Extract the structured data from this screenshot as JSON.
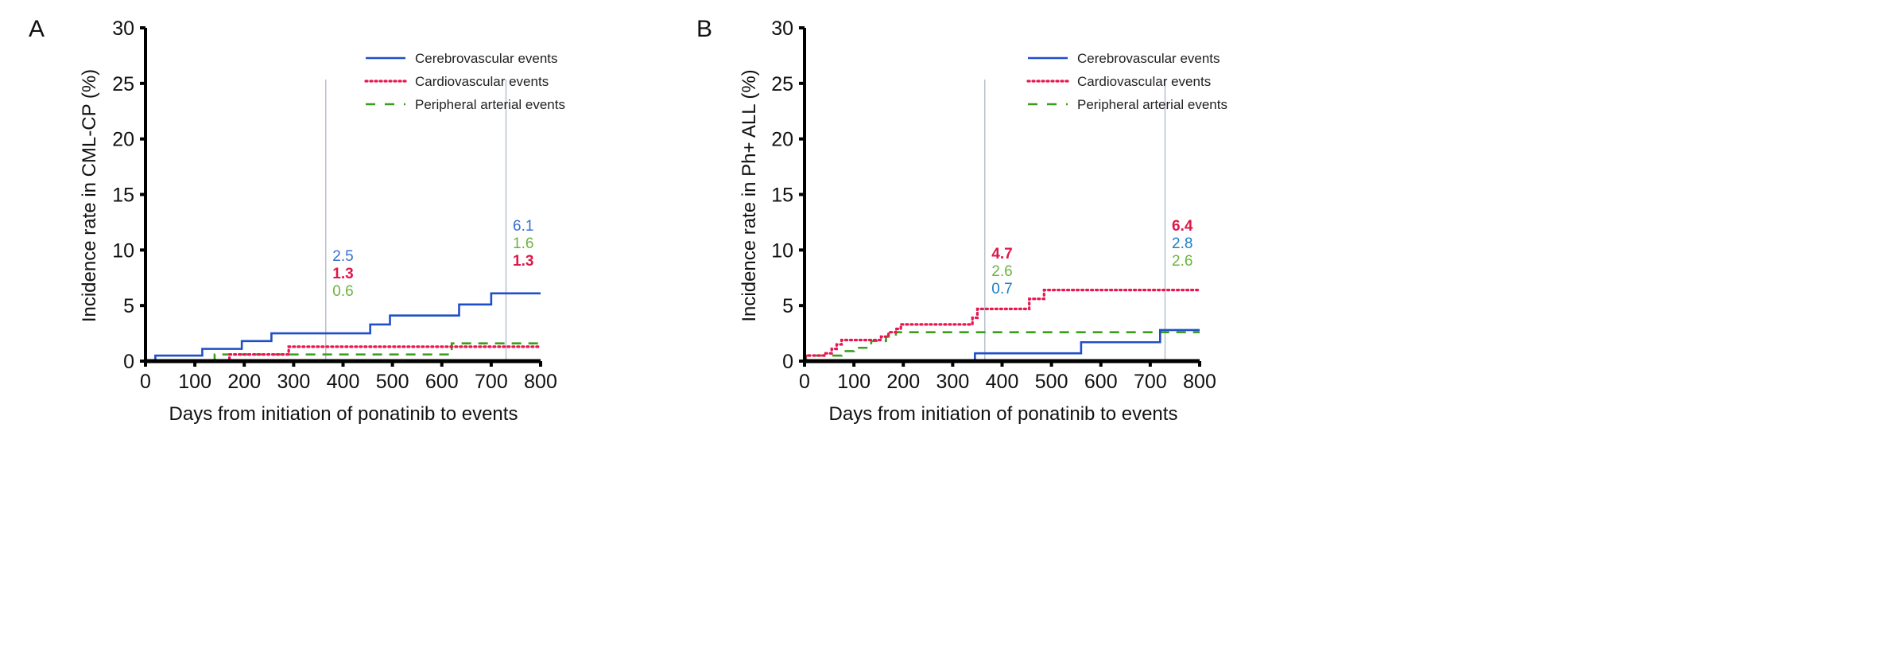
{
  "chart_data": [
    {
      "type": "line",
      "step": true,
      "panel_label": "A",
      "title": "",
      "xlabel": "Days from initiation of ponatinib to events",
      "ylabel": "Incidence rate in CML-CP (%)",
      "xlim": [
        0,
        800
      ],
      "ylim": [
        0,
        30
      ],
      "xticks": [
        "0",
        "100",
        "200",
        "300",
        "400",
        "500",
        "600",
        "700",
        "800"
      ],
      "yticks": [
        "0",
        "5",
        "10",
        "15",
        "20",
        "25",
        "30"
      ],
      "reference_lines_x": [
        365,
        730
      ],
      "legend_position": "top-right",
      "series": [
        {
          "name": "Cerebrovascular events",
          "style": "solid",
          "color": "#1f4fc8",
          "x": [
            0,
            20,
            115,
            195,
            255,
            455,
            495,
            635,
            700,
            800
          ],
          "y": [
            0,
            0.5,
            1.1,
            1.8,
            2.5,
            3.3,
            4.1,
            5.1,
            6.1,
            6.1
          ]
        },
        {
          "name": "Cardiovascular events",
          "style": "dotted",
          "color": "#e8174f",
          "x": [
            0,
            170,
            290,
            800
          ],
          "y": [
            0,
            0.6,
            1.3,
            1.3
          ]
        },
        {
          "name": "Peripheral arterial events",
          "style": "dashed",
          "color": "#3a9e1a",
          "x": [
            0,
            140,
            620,
            800
          ],
          "y": [
            0,
            0.6,
            1.6,
            1.6
          ]
        }
      ],
      "annotations": [
        {
          "x": 400,
          "lines": [
            {
              "text": "2.5",
              "color": "#3a6fd1",
              "bold": false
            },
            {
              "text": "1.3",
              "color": "#e0174a",
              "bold": true
            },
            {
              "text": "0.6",
              "color": "#6db33f",
              "bold": false
            }
          ]
        },
        {
          "x": 765,
          "lines": [
            {
              "text": "6.1",
              "color": "#3a6fd1",
              "bold": false
            },
            {
              "text": "1.6",
              "color": "#6db33f",
              "bold": false
            },
            {
              "text": "1.3",
              "color": "#e0174a",
              "bold": true
            }
          ]
        }
      ]
    },
    {
      "type": "line",
      "step": true,
      "panel_label": "B",
      "title": "",
      "xlabel": "Days from initiation of ponatinib to events",
      "ylabel": "Incidence rate in Ph+ ALL (%)",
      "xlim": [
        0,
        800
      ],
      "ylim": [
        0,
        30
      ],
      "xticks": [
        "0",
        "100",
        "200",
        "300",
        "400",
        "500",
        "600",
        "700",
        "800"
      ],
      "yticks": [
        "0",
        "5",
        "10",
        "15",
        "20",
        "25",
        "30"
      ],
      "reference_lines_x": [
        365,
        730
      ],
      "legend_position": "top-right",
      "series": [
        {
          "name": "Cerebrovascular events",
          "style": "solid",
          "color": "#1f4fc8",
          "x": [
            0,
            345,
            560,
            720,
            800
          ],
          "y": [
            0,
            0.7,
            1.7,
            2.8,
            2.8
          ]
        },
        {
          "name": "Cardiovascular events",
          "style": "dotted",
          "color": "#e8174f",
          "x": [
            0,
            2,
            40,
            55,
            65,
            75,
            155,
            170,
            185,
            195,
            340,
            350,
            455,
            485,
            800
          ],
          "y": [
            0,
            0.5,
            0.7,
            1.1,
            1.5,
            1.9,
            2.2,
            2.6,
            2.9,
            3.3,
            3.9,
            4.7,
            5.6,
            6.4,
            6.4
          ]
        },
        {
          "name": "Peripheral arterial events",
          "style": "dashed",
          "color": "#3a9e1a",
          "x": [
            0,
            3,
            75,
            100,
            135,
            165,
            185,
            800
          ],
          "y": [
            0,
            0.5,
            0.9,
            1.2,
            1.8,
            2.2,
            2.6,
            2.6
          ]
        }
      ],
      "annotations": [
        {
          "x": 400,
          "lines": [
            {
              "text": "4.7",
              "color": "#e0174a",
              "bold": true
            },
            {
              "text": "2.6",
              "color": "#6db33f",
              "bold": false
            },
            {
              "text": "0.7",
              "color": "#1a7fc6",
              "bold": false
            }
          ]
        },
        {
          "x": 765,
          "lines": [
            {
              "text": "6.4",
              "color": "#e0174a",
              "bold": true
            },
            {
              "text": "2.8",
              "color": "#1a7fc6",
              "bold": false
            },
            {
              "text": "2.6",
              "color": "#6db33f",
              "bold": false
            }
          ]
        }
      ]
    }
  ]
}
